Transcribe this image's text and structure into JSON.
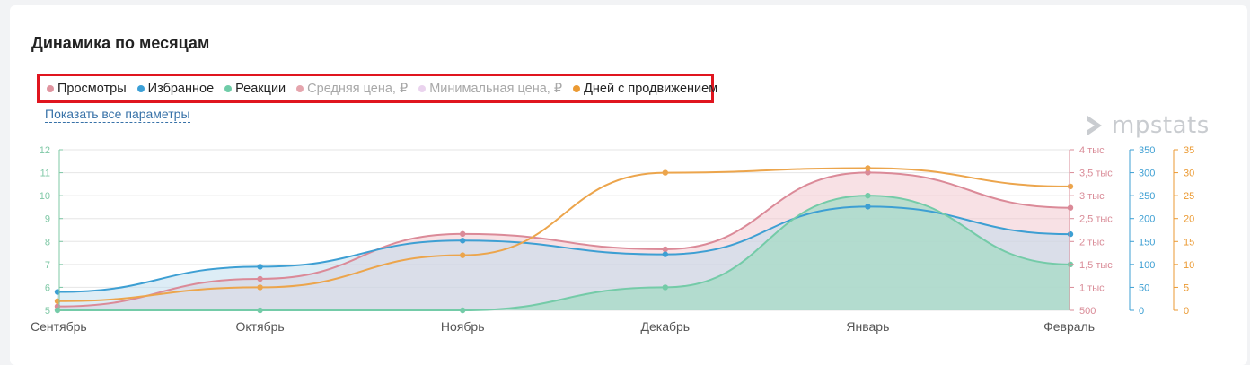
{
  "title": "Динамика по месяцам",
  "show_all_label": "Показать все параметры",
  "logo_text": "mpstats",
  "legend": [
    {
      "label": "Просмотры",
      "color": "#e0949f",
      "active": true
    },
    {
      "label": "Избранное",
      "color": "#3b9fd6",
      "active": true
    },
    {
      "label": "Реакции",
      "color": "#6fcca8",
      "active": true
    },
    {
      "label": "Средняя цена, ₽",
      "color": "#e5a5ad",
      "active": false
    },
    {
      "label": "Минимальная цена, ₽",
      "color": "#ead3ee",
      "active": false
    },
    {
      "label": "Дней с продвижением",
      "color": "#eb9a33",
      "active": true
    }
  ],
  "chart_data": {
    "type": "area",
    "categories": [
      "Сентябрь",
      "Октябрь",
      "Ноябрь",
      "Декабрь",
      "Январь",
      "Февраль"
    ],
    "series": [
      {
        "name": "Просмотры",
        "color": "#db8a98",
        "fill": "#f1c4cc",
        "axis": "views",
        "values": [
          585,
          1185,
          2165,
          1830,
          3505,
          2735
        ]
      },
      {
        "name": "Избранное",
        "color": "#3d9fd3",
        "fill": "#bcdcee",
        "axis": "favorites",
        "values": [
          40,
          95,
          152,
          122,
          226,
          166
        ]
      },
      {
        "name": "Реакции",
        "color": "#74cba8",
        "fill": "#a6dbc6",
        "axis": "reactions",
        "values": [
          5,
          5,
          5,
          6,
          10,
          7
        ]
      },
      {
        "name": "Дней с продвижением",
        "color": "#eca54c",
        "fill": null,
        "axis": "promo",
        "values": [
          2,
          5,
          12,
          30,
          31,
          27
        ]
      }
    ],
    "axes": {
      "reactions": {
        "min": 5,
        "max": 12,
        "ticks": [
          "5",
          "6",
          "7",
          "8",
          "9",
          "10",
          "11",
          "12"
        ],
        "color": "#7fc8a6"
      },
      "views": {
        "min": 500,
        "max": 4000,
        "ticks": [
          "500",
          "1 тыс",
          "1,5 тыс",
          "2 тыс",
          "2,5 тыс",
          "3 тыс",
          "3,5 тыс",
          "4 тыс"
        ],
        "color": "#d98b97"
      },
      "favorites": {
        "min": 0,
        "max": 350,
        "ticks": [
          "0",
          "50",
          "100",
          "150",
          "200",
          "250",
          "300",
          "350"
        ],
        "color": "#3d9fd3"
      },
      "promo": {
        "min": 0,
        "max": 35,
        "ticks": [
          "0",
          "5",
          "10",
          "15",
          "20",
          "25",
          "30",
          "35"
        ],
        "color": "#eb9a33"
      }
    }
  }
}
